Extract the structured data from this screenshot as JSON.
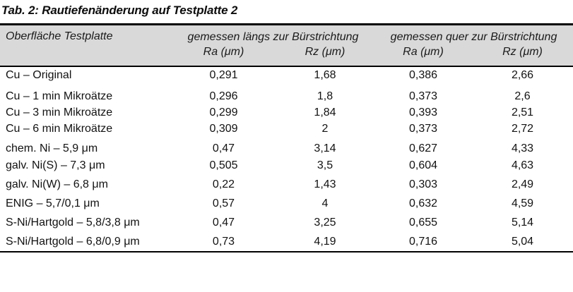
{
  "title": "Tab. 2: Rautiefenänderung auf Testplatte 2",
  "colors": {
    "header_background": "#d9d9d9",
    "border": "#000000",
    "text": "#121212"
  },
  "table": {
    "corner_header": "Oberfläche Testplatte",
    "group_headers": [
      "gemessen längs zur Bürstrichtung",
      "gemessen quer zur Bürstrichtung"
    ],
    "sub_headers": [
      "Ra (μm)",
      "Rz (μm)",
      "Ra (μm)",
      "Rz (μm)"
    ],
    "rows": [
      {
        "label": "Cu – Original",
        "values": [
          "0,291",
          "1,68",
          "0,386",
          "2,66"
        ]
      },
      {
        "label": "Cu – 1 min Mikroätze",
        "values": [
          "0,296",
          "1,8",
          "0,373",
          "2,6"
        ]
      },
      {
        "label": "Cu – 3 min Mikroätze",
        "values": [
          "0,299",
          "1,84",
          "0,393",
          "2,51"
        ]
      },
      {
        "label": "Cu – 6 min Mikroätze",
        "values": [
          "0,309",
          "2",
          "0,373",
          "2,72"
        ]
      },
      {
        "label": "chem. Ni – 5,9 μm",
        "values": [
          "0,47",
          "3,14",
          "0,627",
          "4,33"
        ]
      },
      {
        "label": "galv. Ni(S) – 7,3 μm",
        "values": [
          "0,505",
          "3,5",
          "0,604",
          "4,63"
        ]
      },
      {
        "label": "galv. Ni(W) – 6,8 μm",
        "values": [
          "0,22",
          "1,43",
          "0,303",
          "2,49"
        ]
      },
      {
        "label": "ENIG – 5,7/0,1 μm",
        "values": [
          "0,57",
          "4",
          "0,632",
          "4,59"
        ]
      },
      {
        "label": "S-Ni/Hartgold – 5,8/3,8 μm",
        "values": [
          "0,47",
          "3,25",
          "0,655",
          "5,14"
        ]
      },
      {
        "label": "S-Ni/Hartgold – 6,8/0,9 μm",
        "values": [
          "0,73",
          "4,19",
          "0,716",
          "5,04"
        ]
      }
    ]
  }
}
